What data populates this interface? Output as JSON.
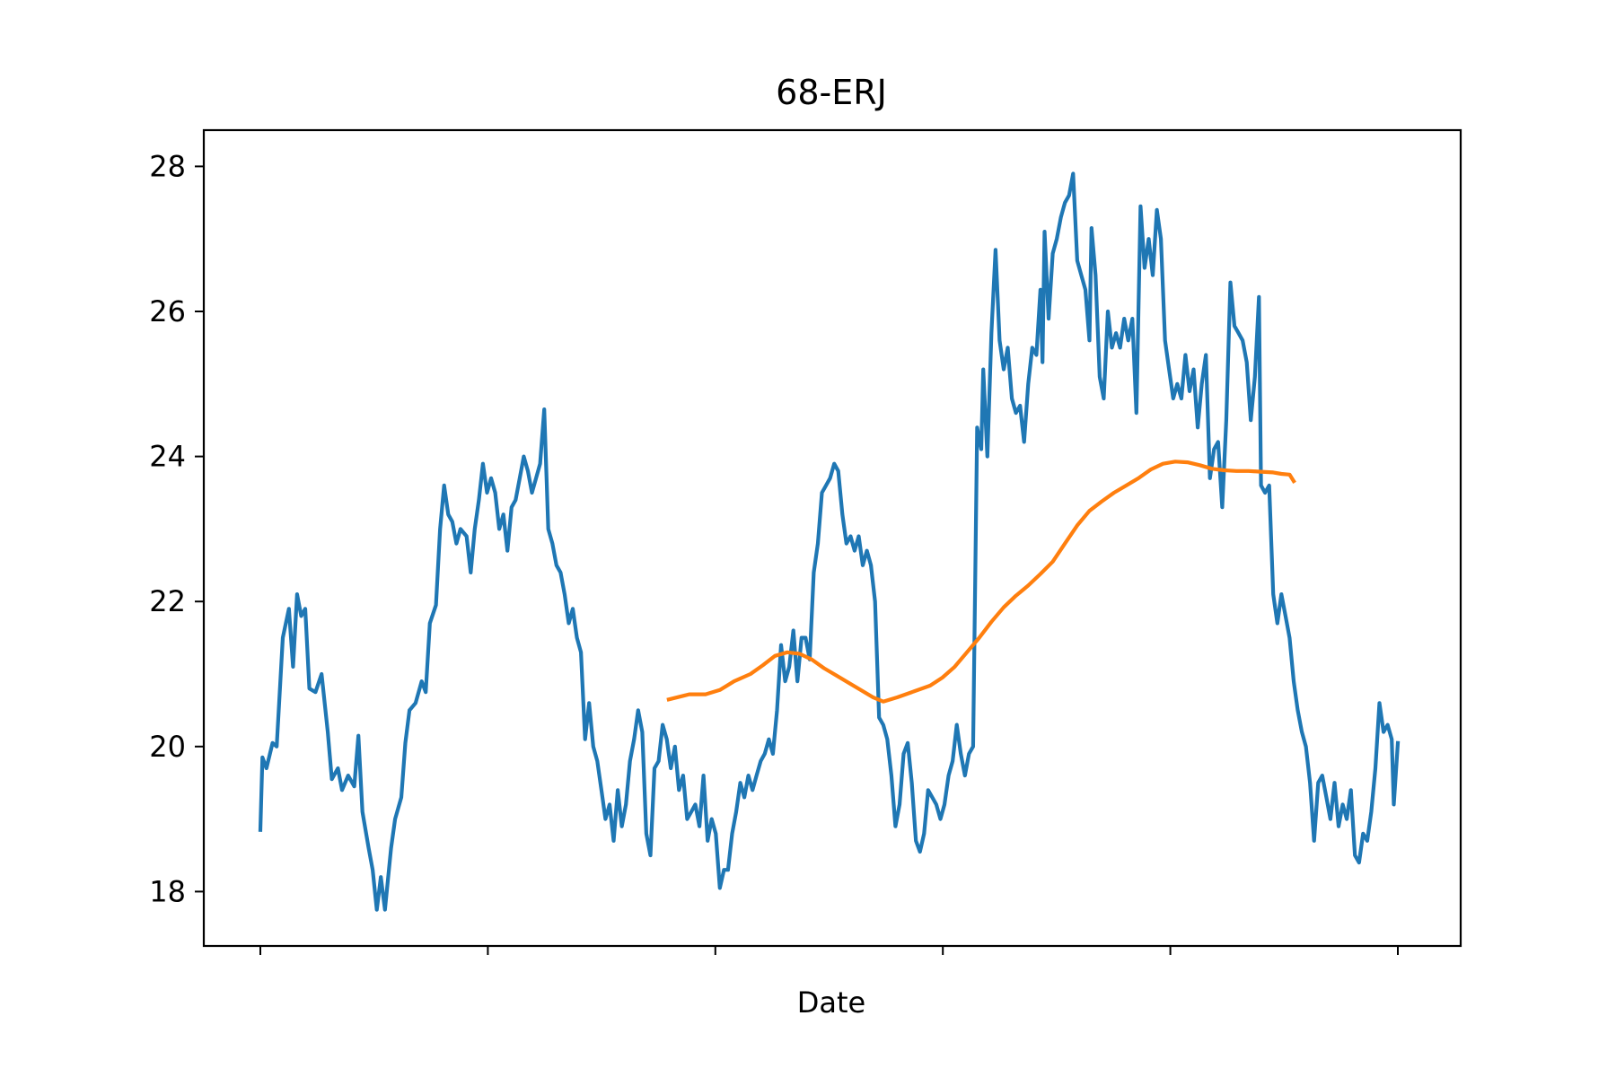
{
  "chart_data": {
    "type": "line",
    "title": "68-ERJ",
    "xlabel": "Date",
    "ylabel": "",
    "ylim": [
      17.25,
      28.5
    ],
    "yticks": [
      18,
      20,
      22,
      24,
      26,
      28
    ],
    "xticks_labeled": false,
    "xtick_count": 6,
    "grid": false,
    "legend": "none",
    "series": [
      {
        "color": "#1f77b4",
        "points": [
          [
            0,
            18.85
          ],
          [
            1,
            19.85
          ],
          [
            3,
            19.7
          ],
          [
            6,
            20.05
          ],
          [
            8,
            20.0
          ],
          [
            11,
            21.5
          ],
          [
            14,
            21.9
          ],
          [
            16,
            21.1
          ],
          [
            18,
            22.1
          ],
          [
            20,
            21.8
          ],
          [
            22,
            21.9
          ],
          [
            24,
            20.8
          ],
          [
            27,
            20.75
          ],
          [
            30,
            21.0
          ],
          [
            33,
            20.2
          ],
          [
            35,
            19.55
          ],
          [
            38,
            19.7
          ],
          [
            40,
            19.4
          ],
          [
            43,
            19.6
          ],
          [
            46,
            19.45
          ],
          [
            48,
            20.15
          ],
          [
            50,
            19.1
          ],
          [
            53,
            18.6
          ],
          [
            55,
            18.3
          ],
          [
            57,
            17.75
          ],
          [
            59,
            18.2
          ],
          [
            61,
            17.75
          ],
          [
            64,
            18.6
          ],
          [
            66,
            19.0
          ],
          [
            69,
            19.3
          ],
          [
            71,
            20.05
          ],
          [
            73,
            20.5
          ],
          [
            76,
            20.6
          ],
          [
            79,
            20.9
          ],
          [
            81,
            20.75
          ],
          [
            83,
            21.7
          ],
          [
            86,
            21.95
          ],
          [
            88,
            23.0
          ],
          [
            90,
            23.6
          ],
          [
            92,
            23.2
          ],
          [
            94,
            23.1
          ],
          [
            96,
            22.8
          ],
          [
            98,
            23.0
          ],
          [
            101,
            22.9
          ],
          [
            103,
            22.4
          ],
          [
            105,
            23.0
          ],
          [
            107,
            23.4
          ],
          [
            109,
            23.9
          ],
          [
            111,
            23.5
          ],
          [
            113,
            23.7
          ],
          [
            115,
            23.5
          ],
          [
            117,
            23.0
          ],
          [
            119,
            23.2
          ],
          [
            121,
            22.7
          ],
          [
            123,
            23.3
          ],
          [
            125,
            23.4
          ],
          [
            127,
            23.7
          ],
          [
            129,
            24.0
          ],
          [
            131,
            23.8
          ],
          [
            133,
            23.5
          ],
          [
            135,
            23.7
          ],
          [
            137,
            23.9
          ],
          [
            139,
            24.65
          ],
          [
            141,
            23.0
          ],
          [
            143,
            22.8
          ],
          [
            145,
            22.5
          ],
          [
            147,
            22.4
          ],
          [
            149,
            22.1
          ],
          [
            151,
            21.7
          ],
          [
            153,
            21.9
          ],
          [
            155,
            21.5
          ],
          [
            157,
            21.3
          ],
          [
            159,
            20.1
          ],
          [
            161,
            20.6
          ],
          [
            163,
            20.0
          ],
          [
            165,
            19.8
          ],
          [
            167,
            19.4
          ],
          [
            169,
            19.0
          ],
          [
            171,
            19.2
          ],
          [
            173,
            18.7
          ],
          [
            175,
            19.4
          ],
          [
            177,
            18.9
          ],
          [
            179,
            19.2
          ],
          [
            181,
            19.8
          ],
          [
            183,
            20.1
          ],
          [
            185,
            20.5
          ],
          [
            187,
            20.2
          ],
          [
            189,
            18.8
          ],
          [
            191,
            18.5
          ],
          [
            193,
            19.7
          ],
          [
            195,
            19.8
          ],
          [
            197,
            20.3
          ],
          [
            199,
            20.1
          ],
          [
            201,
            19.7
          ],
          [
            203,
            20.0
          ],
          [
            205,
            19.4
          ],
          [
            207,
            19.6
          ],
          [
            209,
            19.0
          ],
          [
            211,
            19.1
          ],
          [
            213,
            19.2
          ],
          [
            215,
            18.9
          ],
          [
            217,
            19.6
          ],
          [
            219,
            18.7
          ],
          [
            221,
            19.0
          ],
          [
            223,
            18.8
          ],
          [
            225,
            18.05
          ],
          [
            227,
            18.3
          ],
          [
            229,
            18.3
          ],
          [
            231,
            18.8
          ],
          [
            233,
            19.1
          ],
          [
            235,
            19.5
          ],
          [
            237,
            19.3
          ],
          [
            239,
            19.6
          ],
          [
            241,
            19.4
          ],
          [
            243,
            19.6
          ],
          [
            245,
            19.8
          ],
          [
            247,
            19.9
          ],
          [
            249,
            20.1
          ],
          [
            251,
            19.9
          ],
          [
            253,
            20.5
          ],
          [
            255,
            21.4
          ],
          [
            257,
            20.9
          ],
          [
            259,
            21.1
          ],
          [
            261,
            21.6
          ],
          [
            263,
            20.9
          ],
          [
            265,
            21.5
          ],
          [
            267,
            21.5
          ],
          [
            269,
            21.2
          ],
          [
            271,
            22.4
          ],
          [
            273,
            22.8
          ],
          [
            275,
            23.5
          ],
          [
            277,
            23.6
          ],
          [
            279,
            23.7
          ],
          [
            281,
            23.9
          ],
          [
            283,
            23.8
          ],
          [
            285,
            23.2
          ],
          [
            287,
            22.8
          ],
          [
            289,
            22.9
          ],
          [
            291,
            22.7
          ],
          [
            293,
            22.9
          ],
          [
            295,
            22.5
          ],
          [
            297,
            22.7
          ],
          [
            299,
            22.5
          ],
          [
            301,
            22.0
          ],
          [
            303,
            20.4
          ],
          [
            305,
            20.3
          ],
          [
            307,
            20.1
          ],
          [
            309,
            19.6
          ],
          [
            311,
            18.9
          ],
          [
            313,
            19.2
          ],
          [
            315,
            19.9
          ],
          [
            317,
            20.05
          ],
          [
            319,
            19.5
          ],
          [
            321,
            18.7
          ],
          [
            323,
            18.55
          ],
          [
            325,
            18.8
          ],
          [
            327,
            19.4
          ],
          [
            329,
            19.3
          ],
          [
            331,
            19.2
          ],
          [
            333,
            19.0
          ],
          [
            335,
            19.2
          ],
          [
            337,
            19.6
          ],
          [
            339,
            19.8
          ],
          [
            341,
            20.3
          ],
          [
            343,
            19.9
          ],
          [
            345,
            19.6
          ],
          [
            347,
            19.9
          ],
          [
            349,
            20.0
          ],
          [
            351,
            24.4
          ],
          [
            353,
            24.1
          ],
          [
            354,
            25.2
          ],
          [
            356,
            24.0
          ],
          [
            358,
            25.7
          ],
          [
            360,
            26.85
          ],
          [
            362,
            25.6
          ],
          [
            364,
            25.2
          ],
          [
            366,
            25.5
          ],
          [
            368,
            24.8
          ],
          [
            370,
            24.6
          ],
          [
            372,
            24.7
          ],
          [
            374,
            24.2
          ],
          [
            376,
            25.0
          ],
          [
            378,
            25.5
          ],
          [
            380,
            25.4
          ],
          [
            382,
            26.3
          ],
          [
            383,
            25.3
          ],
          [
            384,
            27.1
          ],
          [
            386,
            25.9
          ],
          [
            388,
            26.8
          ],
          [
            390,
            27.0
          ],
          [
            392,
            27.3
          ],
          [
            394,
            27.5
          ],
          [
            396,
            27.6
          ],
          [
            398,
            27.9
          ],
          [
            400,
            26.7
          ],
          [
            402,
            26.5
          ],
          [
            404,
            26.3
          ],
          [
            406,
            25.6
          ],
          [
            407,
            27.15
          ],
          [
            409,
            26.5
          ],
          [
            411,
            25.1
          ],
          [
            413,
            24.8
          ],
          [
            415,
            26.0
          ],
          [
            417,
            25.5
          ],
          [
            419,
            25.7
          ],
          [
            421,
            25.5
          ],
          [
            423,
            25.9
          ],
          [
            425,
            25.6
          ],
          [
            427,
            25.9
          ],
          [
            429,
            24.6
          ],
          [
            431,
            27.45
          ],
          [
            433,
            26.6
          ],
          [
            435,
            27.0
          ],
          [
            437,
            26.5
          ],
          [
            439,
            27.4
          ],
          [
            441,
            27.0
          ],
          [
            443,
            25.6
          ],
          [
            445,
            25.2
          ],
          [
            447,
            24.8
          ],
          [
            449,
            25.0
          ],
          [
            451,
            24.8
          ],
          [
            453,
            25.4
          ],
          [
            455,
            24.9
          ],
          [
            457,
            25.2
          ],
          [
            459,
            24.4
          ],
          [
            461,
            25.0
          ],
          [
            463,
            25.4
          ],
          [
            465,
            23.7
          ],
          [
            467,
            24.1
          ],
          [
            469,
            24.2
          ],
          [
            471,
            23.3
          ],
          [
            473,
            24.5
          ],
          [
            475,
            26.4
          ],
          [
            477,
            25.8
          ],
          [
            479,
            25.7
          ],
          [
            481,
            25.6
          ],
          [
            483,
            25.3
          ],
          [
            485,
            24.5
          ],
          [
            487,
            25.1
          ],
          [
            489,
            26.2
          ],
          [
            490,
            23.6
          ],
          [
            492,
            23.5
          ],
          [
            494,
            23.6
          ],
          [
            496,
            22.1
          ],
          [
            498,
            21.7
          ],
          [
            500,
            22.1
          ],
          [
            502,
            21.8
          ],
          [
            504,
            21.5
          ],
          [
            506,
            20.9
          ],
          [
            508,
            20.5
          ],
          [
            510,
            20.2
          ],
          [
            512,
            20.0
          ],
          [
            514,
            19.5
          ],
          [
            516,
            18.7
          ],
          [
            518,
            19.5
          ],
          [
            520,
            19.6
          ],
          [
            522,
            19.3
          ],
          [
            524,
            19.0
          ],
          [
            526,
            19.5
          ],
          [
            528,
            18.9
          ],
          [
            530,
            19.2
          ],
          [
            532,
            19.0
          ],
          [
            534,
            19.4
          ],
          [
            536,
            18.5
          ],
          [
            538,
            18.4
          ],
          [
            540,
            18.8
          ],
          [
            542,
            18.7
          ],
          [
            544,
            19.1
          ],
          [
            546,
            19.7
          ],
          [
            548,
            20.6
          ],
          [
            550,
            20.2
          ],
          [
            552,
            20.3
          ],
          [
            554,
            20.1
          ],
          [
            555,
            19.2
          ],
          [
            557,
            20.05
          ]
        ]
      },
      {
        "color": "#ff7f0e",
        "points": [
          [
            200,
            20.65
          ],
          [
            210,
            20.72
          ],
          [
            218,
            20.72
          ],
          [
            225,
            20.78
          ],
          [
            232,
            20.9
          ],
          [
            240,
            21.0
          ],
          [
            246,
            21.12
          ],
          [
            252,
            21.25
          ],
          [
            258,
            21.3
          ],
          [
            264,
            21.28
          ],
          [
            270,
            21.2
          ],
          [
            276,
            21.08
          ],
          [
            282,
            20.98
          ],
          [
            288,
            20.88
          ],
          [
            294,
            20.78
          ],
          [
            300,
            20.68
          ],
          [
            305,
            20.62
          ],
          [
            312,
            20.68
          ],
          [
            320,
            20.76
          ],
          [
            328,
            20.84
          ],
          [
            334,
            20.95
          ],
          [
            340,
            21.1
          ],
          [
            346,
            21.3
          ],
          [
            352,
            21.5
          ],
          [
            358,
            21.72
          ],
          [
            364,
            21.92
          ],
          [
            370,
            22.08
          ],
          [
            376,
            22.22
          ],
          [
            382,
            22.38
          ],
          [
            388,
            22.55
          ],
          [
            394,
            22.8
          ],
          [
            400,
            23.05
          ],
          [
            406,
            23.25
          ],
          [
            412,
            23.38
          ],
          [
            418,
            23.5
          ],
          [
            424,
            23.6
          ],
          [
            430,
            23.7
          ],
          [
            436,
            23.82
          ],
          [
            442,
            23.9
          ],
          [
            448,
            23.93
          ],
          [
            454,
            23.92
          ],
          [
            460,
            23.88
          ],
          [
            466,
            23.83
          ],
          [
            472,
            23.81
          ],
          [
            478,
            23.8
          ],
          [
            484,
            23.8
          ],
          [
            490,
            23.79
          ],
          [
            496,
            23.78
          ],
          [
            500,
            23.76
          ],
          [
            504,
            23.75
          ],
          [
            506,
            23.66
          ]
        ]
      }
    ]
  }
}
